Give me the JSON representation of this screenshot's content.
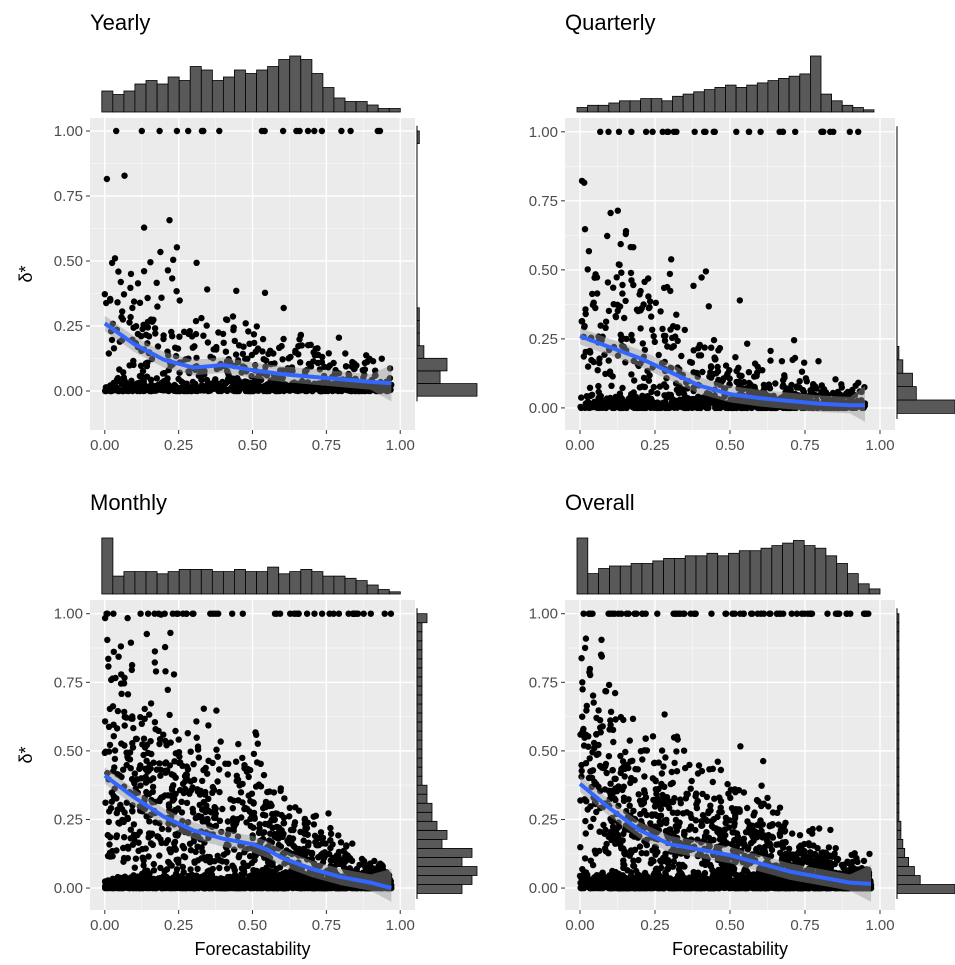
{
  "chart_data": [
    {
      "type": "scatter",
      "title": "Yearly",
      "xlabel": "",
      "ylabel": "δ*",
      "xlim": [
        -0.05,
        1.05
      ],
      "ylim": [
        -0.15,
        1.05
      ],
      "xticks": [
        "0.00",
        "0.25",
        "0.50",
        "0.75",
        "1.00"
      ],
      "yticks": [
        "0.00",
        "0.25",
        "0.50",
        "0.75",
        "1.00"
      ],
      "grid": true,
      "n_points": 900,
      "smooth_line": {
        "x": [
          0.0,
          0.1,
          0.2,
          0.3,
          0.4,
          0.5,
          0.6,
          0.7,
          0.8,
          0.9,
          0.97
        ],
        "y": [
          0.26,
          0.18,
          0.12,
          0.09,
          0.1,
          0.08,
          0.065,
          0.055,
          0.045,
          0.035,
          0.03
        ],
        "color": "#3366ff"
      },
      "top_histogram": [
        6,
        5,
        6,
        8,
        9,
        8,
        10,
        9,
        13,
        12,
        9,
        10,
        12,
        11,
        12,
        13,
        15,
        16,
        15,
        11,
        7,
        4,
        3,
        3,
        2,
        1,
        1
      ],
      "right_histogram": [
        26,
        10,
        13,
        3,
        1,
        1,
        1,
        0,
        0,
        0,
        0,
        0,
        0,
        0,
        0,
        0,
        0,
        0,
        0,
        0,
        1
      ]
    },
    {
      "type": "scatter",
      "title": "Quarterly",
      "xlabel": "",
      "ylabel": "",
      "xlim": [
        -0.05,
        1.05
      ],
      "ylim": [
        -0.08,
        1.05
      ],
      "xticks": [
        "0.00",
        "0.25",
        "0.50",
        "0.75",
        "1.00"
      ],
      "yticks": [
        "0.00",
        "0.25",
        "0.50",
        "0.75",
        "1.00"
      ],
      "grid": true,
      "n_points": 1100,
      "smooth_line": {
        "x": [
          0.0,
          0.1,
          0.2,
          0.3,
          0.4,
          0.5,
          0.6,
          0.7,
          0.8,
          0.9,
          0.95
        ],
        "y": [
          0.26,
          0.22,
          0.18,
          0.13,
          0.08,
          0.05,
          0.035,
          0.025,
          0.015,
          0.01,
          0.01
        ],
        "color": "#3366ff"
      },
      "top_histogram": [
        2,
        3,
        3,
        4,
        5,
        5,
        6,
        6,
        5,
        7,
        8,
        9,
        10,
        11,
        12,
        11,
        12,
        13,
        14,
        15,
        16,
        17,
        25,
        8,
        5,
        3,
        2,
        1
      ],
      "right_histogram": [
        30,
        10,
        8,
        3,
        1,
        0,
        0,
        0,
        0,
        0,
        0,
        0,
        0,
        0,
        0,
        0,
        0,
        0,
        0,
        0,
        0
      ]
    },
    {
      "type": "scatter",
      "title": "Monthly",
      "xlabel": "Forecastability",
      "ylabel": "δ*",
      "xlim": [
        -0.05,
        1.05
      ],
      "ylim": [
        -0.08,
        1.05
      ],
      "xticks": [
        "0.00",
        "0.25",
        "0.50",
        "0.75",
        "1.00"
      ],
      "yticks": [
        "0.00",
        "0.25",
        "0.50",
        "0.75",
        "1.00"
      ],
      "grid": true,
      "n_points": 2400,
      "smooth_line": {
        "x": [
          0.0,
          0.1,
          0.2,
          0.3,
          0.4,
          0.5,
          0.55,
          0.6,
          0.7,
          0.8,
          0.9,
          0.97
        ],
        "y": [
          0.41,
          0.33,
          0.26,
          0.21,
          0.18,
          0.16,
          0.14,
          0.11,
          0.07,
          0.04,
          0.02,
          0.0
        ],
        "color": "#3366ff"
      },
      "top_histogram": [
        25,
        8,
        10,
        10,
        10,
        9,
        10,
        11,
        11,
        11,
        10,
        10,
        11,
        10,
        10,
        12,
        9,
        10,
        11,
        10,
        8,
        8,
        7,
        6,
        4,
        2,
        1
      ],
      "right_histogram": [
        9,
        11,
        12,
        9,
        11,
        5,
        6,
        4,
        3,
        3,
        2,
        2,
        1,
        1,
        1,
        1,
        1,
        1,
        1,
        1,
        1,
        1,
        1,
        1,
        1,
        1,
        1,
        1,
        1,
        1,
        2
      ]
    },
    {
      "type": "scatter",
      "title": "Overall",
      "xlabel": "Forecastability",
      "ylabel": "",
      "xlim": [
        -0.05,
        1.05
      ],
      "ylim": [
        -0.08,
        1.05
      ],
      "xticks": [
        "0.00",
        "0.25",
        "0.50",
        "0.75",
        "1.00"
      ],
      "yticks": [
        "0.00",
        "0.25",
        "0.50",
        "0.75",
        "1.00"
      ],
      "grid": true,
      "n_points": 2800,
      "smooth_line": {
        "x": [
          0.0,
          0.1,
          0.2,
          0.3,
          0.4,
          0.5,
          0.6,
          0.7,
          0.8,
          0.9,
          0.97
        ],
        "y": [
          0.38,
          0.29,
          0.21,
          0.16,
          0.14,
          0.12,
          0.09,
          0.06,
          0.04,
          0.02,
          0.015
        ],
        "color": "#3366ff"
      },
      "top_histogram": [
        22,
        8,
        10,
        11,
        11,
        12,
        12,
        13,
        14,
        14,
        15,
        15,
        16,
        15,
        16,
        17,
        17,
        18,
        19,
        20,
        21,
        19,
        18,
        15,
        12,
        8,
        4,
        2
      ],
      "right_histogram": [
        30,
        12,
        9,
        6,
        4,
        3,
        2,
        2,
        1,
        1,
        1,
        1,
        1,
        1,
        1,
        1,
        1,
        1,
        1,
        1,
        1,
        1,
        1,
        1,
        1,
        1,
        1,
        1,
        1,
        1,
        1
      ]
    }
  ]
}
